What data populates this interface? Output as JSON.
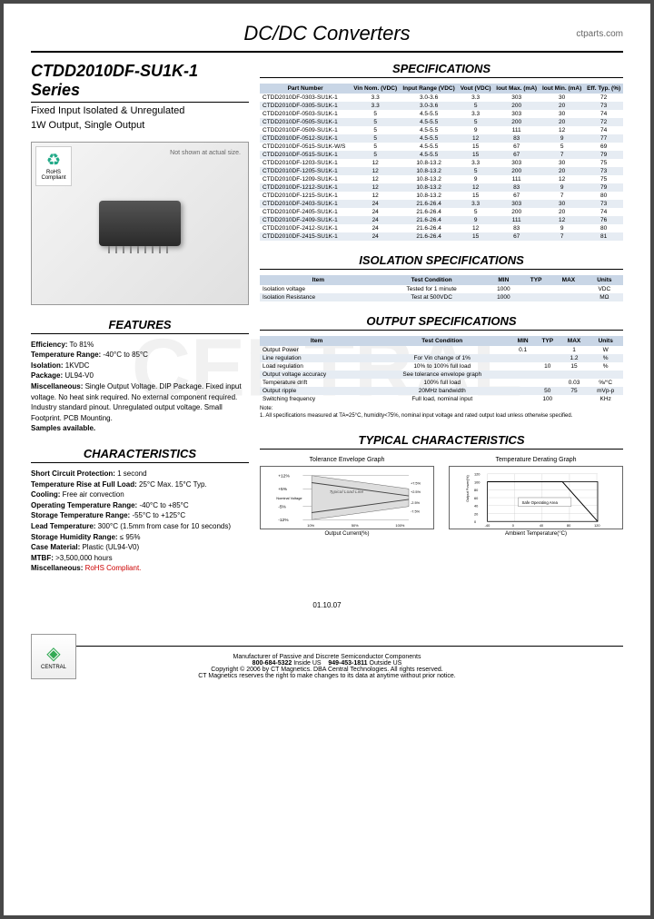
{
  "header": {
    "title": "DC/DC Converters",
    "url": "ctparts.com"
  },
  "series": {
    "title": "CTDD2010DF-SU1K-1 Series",
    "sub1": "Fixed Input Isolated & Unregulated",
    "sub2": "1W Output, Single Output"
  },
  "product": {
    "note": "Not shown at actual size.",
    "rohs": "RoHS Compliant"
  },
  "features": {
    "title": "FEATURES",
    "items": [
      {
        "k": "Efficiency:",
        "v": "To 81%"
      },
      {
        "k": "Temperature Range:",
        "v": "-40°C to 85°C"
      },
      {
        "k": "Isolation:",
        "v": "1KVDC"
      },
      {
        "k": "Package:",
        "v": "UL94-V0"
      },
      {
        "k": "Miscellaneous:",
        "v": "Single Output Voltage. DIP Package. Fixed input voltage. No heat sink required. No external component required. Industry standard pinout. Unregulated output voltage. Small Footprint. PCB Mounting."
      },
      {
        "k": "Samples available.",
        "v": ""
      }
    ]
  },
  "characteristics": {
    "title": "CHARACTERISTICS",
    "items": [
      {
        "k": "Short Circuit Protection:",
        "v": "1 second"
      },
      {
        "k": "Temperature Rise at Full Load:",
        "v": "25°C Max. 15°C Typ."
      },
      {
        "k": "Cooling:",
        "v": "Free air convection"
      },
      {
        "k": "Operating Temperature Range:",
        "v": "-40°C to +85°C"
      },
      {
        "k": "Storage Temperature Range:",
        "v": "-55°C to +125°C"
      },
      {
        "k": "Lead Temperature:",
        "v": "300°C (1.5mm from case for 10 seconds)"
      },
      {
        "k": "Storage Humidity Range:",
        "v": "≤ 95%"
      },
      {
        "k": "Case Material:",
        "v": "Plastic (UL94-V0)"
      },
      {
        "k": "MTBF:",
        "v": ">3,500,000 hours"
      },
      {
        "k": "Miscellaneous:",
        "v": "RoHS Compliant.",
        "red": true
      }
    ]
  },
  "specs": {
    "title": "SPECIFICATIONS",
    "cols": [
      "Part Number",
      "Vin Nom. (VDC)",
      "Input Range (VDC)",
      "Vout (VDC)",
      "Iout Max. (mA)",
      "Iout Min. (mA)",
      "Eff. Typ. (%)"
    ],
    "rows": [
      [
        "CTDD2010DF-0303-SU1K-1",
        "3.3",
        "3.0-3.6",
        "3.3",
        "303",
        "30",
        "72"
      ],
      [
        "CTDD2010DF-0305-SU1K-1",
        "3.3",
        "3.0-3.6",
        "5",
        "200",
        "20",
        "73"
      ],
      [
        "CTDD2010DF-0503-SU1K-1",
        "5",
        "4.5-5.5",
        "3.3",
        "303",
        "30",
        "74"
      ],
      [
        "CTDD2010DF-0505-SU1K-1",
        "5",
        "4.5-5.5",
        "5",
        "200",
        "20",
        "72"
      ],
      [
        "CTDD2010DF-0509-SU1K-1",
        "5",
        "4.5-5.5",
        "9",
        "111",
        "12",
        "74"
      ],
      [
        "CTDD2010DF-0512-SU1K-1",
        "5",
        "4.5-5.5",
        "12",
        "83",
        "9",
        "77"
      ],
      [
        "CTDD2010DF-0515-SU1K-W/S",
        "5",
        "4.5-5.5",
        "15",
        "67",
        "5",
        "69"
      ],
      [
        "CTDD2010DF-0515-SU1K-1",
        "5",
        "4.5-5.5",
        "15",
        "67",
        "7",
        "79"
      ],
      [
        "CTDD2010DF-1203-SU1K-1",
        "12",
        "10.8-13.2",
        "3.3",
        "303",
        "30",
        "75"
      ],
      [
        "CTDD2010DF-1205-SU1K-1",
        "12",
        "10.8-13.2",
        "5",
        "200",
        "20",
        "73"
      ],
      [
        "CTDD2010DF-1209-SU1K-1",
        "12",
        "10.8-13.2",
        "9",
        "111",
        "12",
        "75"
      ],
      [
        "CTDD2010DF-1212-SU1K-1",
        "12",
        "10.8-13.2",
        "12",
        "83",
        "9",
        "79"
      ],
      [
        "CTDD2010DF-1215-SU1K-1",
        "12",
        "10.8-13.2",
        "15",
        "67",
        "7",
        "80"
      ],
      [
        "CTDD2010DF-2403-SU1K-1",
        "24",
        "21.6-26.4",
        "3.3",
        "303",
        "30",
        "73"
      ],
      [
        "CTDD2010DF-2405-SU1K-1",
        "24",
        "21.6-26.4",
        "5",
        "200",
        "20",
        "74"
      ],
      [
        "CTDD2010DF-2409-SU1K-1",
        "24",
        "21.6-26.4",
        "9",
        "111",
        "12",
        "76"
      ],
      [
        "CTDD2010DF-2412-SU1K-1",
        "24",
        "21.6-26.4",
        "12",
        "83",
        "9",
        "80"
      ],
      [
        "CTDD2010DF-2415-SU1K-1",
        "24",
        "21.6-26.4",
        "15",
        "67",
        "7",
        "81"
      ]
    ]
  },
  "isolation": {
    "title": "ISOLATION SPECIFICATIONS",
    "cols": [
      "Item",
      "Test Condition",
      "MIN",
      "TYP",
      "MAX",
      "Units"
    ],
    "rows": [
      [
        "Isolation voltage",
        "Tested for 1 minute",
        "1000",
        "",
        "",
        "VDC"
      ],
      [
        "Isolation Resistance",
        "Test at 500VDC",
        "1000",
        "",
        "",
        "MΩ"
      ]
    ]
  },
  "output": {
    "title": "OUTPUT SPECIFICATIONS",
    "cols": [
      "Item",
      "Test Condition",
      "MIN",
      "TYP",
      "MAX",
      "Units"
    ],
    "rows": [
      [
        "Output Power",
        "",
        "0.1",
        "",
        "1",
        "W"
      ],
      [
        "Line regulation",
        "For Vin change of 1%",
        "",
        "",
        "1.2",
        "%"
      ],
      [
        "Load regulation",
        "10% to 100% full load",
        "",
        "10",
        "15",
        "%"
      ],
      [
        "Output voltage accuracy",
        "See tolerance envelope graph",
        "",
        "",
        "",
        ""
      ],
      [
        "Temperature drift",
        "100% full load",
        "",
        "",
        "0.03",
        "%/°C"
      ],
      [
        "Output ripple",
        "20MHz bandwidth",
        "",
        "50",
        "75",
        "mVp-p"
      ],
      [
        "Switching frequency",
        "Full load, nominal input",
        "",
        "100",
        "",
        "KHz"
      ]
    ],
    "note_label": "Note:",
    "note": "1. All specifications measured at TA=25°C, humidity<75%, nominal input voltage and rated output load unless otherwise specified."
  },
  "typical": {
    "title": "TYPICAL CHARACTERISTICS",
    "chart1": {
      "title": "Tolerance Envelope Graph",
      "ylabel": "Output Voltage(%)",
      "xlabel": "Output Current(%)",
      "ymarks": [
        "+12%",
        "+5%",
        "-5%",
        "-12%"
      ],
      "nominal": "Nominal Voltage",
      "xticks": [
        "0",
        "10%",
        "50%",
        "100%"
      ],
      "lines": [
        "+7.5%",
        "+2.5%",
        "-2.5%",
        "-7.5%"
      ],
      "band": "Typical Load Line"
    },
    "chart2": {
      "title": "Temperature Derating Graph",
      "ylabel": "Output Power(%)",
      "xlabel": "Ambient Temperature(°C)",
      "yticks": [
        "120",
        "100",
        "80",
        "60",
        "40",
        "20",
        "0"
      ],
      "xticks": [
        "-40",
        "0",
        "40",
        "80",
        "120"
      ],
      "box": "Safe Operating Area"
    }
  },
  "date": "01.10.07",
  "footer": {
    "line1": "Manufacturer of Passive and Discrete Semiconductor Components",
    "phone1_label": "800-684-5322",
    "phone1_sub": "Inside US",
    "phone2_label": "949-453-1811",
    "phone2_sub": "Outside US",
    "copy": "Copyright © 2006 by CT Magnetics. DBA Central Technologies. All rights reserved.",
    "disc": "CT Magnetics reserves the right to make changes to its data at anytime without prior notice.",
    "logo": "CENTRAL"
  },
  "watermark": "CENTRAL"
}
